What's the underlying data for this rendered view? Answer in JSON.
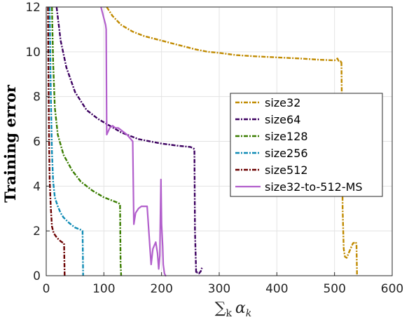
{
  "chart_data": {
    "type": "line",
    "title": "",
    "xlabel": "∑k αk",
    "xlabel_parts": {
      "sum": "∑",
      "sum_sub": "k",
      "alpha": "α",
      "alpha_sub": "k"
    },
    "ylabel": "Training error",
    "xlim": [
      0,
      600
    ],
    "ylim": [
      0,
      12
    ],
    "xticks": [
      0,
      100,
      200,
      300,
      400,
      500,
      600
    ],
    "yticks": [
      0,
      2,
      4,
      6,
      8,
      10,
      12
    ],
    "grid": true,
    "legend_position": "center-right",
    "series": [
      {
        "name": "size32",
        "color": "#c08a00",
        "dash": "dashdot",
        "x": [
          105,
          115,
          130,
          150,
          170,
          200,
          230,
          260,
          280,
          300,
          330,
          360,
          400,
          440,
          470,
          500,
          505,
          507,
          510,
          512,
          513,
          514,
          516,
          518,
          521,
          526,
          532,
          537,
          538,
          539
        ],
        "y": [
          12.0,
          11.6,
          11.2,
          10.9,
          10.7,
          10.5,
          10.3,
          10.1,
          10.0,
          9.95,
          9.85,
          9.8,
          9.75,
          9.7,
          9.65,
          9.62,
          9.7,
          9.6,
          9.55,
          9.6,
          7.0,
          3.0,
          1.2,
          0.85,
          0.8,
          1.1,
          1.45,
          1.5,
          1.4,
          0.0
        ]
      },
      {
        "name": "size64",
        "color": "#3c0060",
        "dash": "dashdot",
        "x": [
          18,
          25,
          35,
          50,
          70,
          90,
          110,
          130,
          160,
          200,
          230,
          250,
          255,
          257,
          258,
          260,
          262,
          265,
          268,
          270
        ],
        "y": [
          12.0,
          10.5,
          9.3,
          8.2,
          7.4,
          7.0,
          6.7,
          6.4,
          6.1,
          5.9,
          5.8,
          5.75,
          5.7,
          5.65,
          2.0,
          0.1,
          0.15,
          0.1,
          0.2,
          0.35
        ]
      },
      {
        "name": "size128",
        "color": "#3a7d00",
        "dash": "dashdot",
        "x": [
          10,
          12,
          15,
          20,
          30,
          45,
          60,
          80,
          100,
          115,
          125,
          128,
          129,
          130
        ],
        "y": [
          12.0,
          9.5,
          7.5,
          6.3,
          5.4,
          4.7,
          4.2,
          3.8,
          3.5,
          3.35,
          3.25,
          3.2,
          0.5,
          0.0
        ]
      },
      {
        "name": "size256",
        "color": "#0f8bb5",
        "dash": "dashdot",
        "x": [
          6,
          8,
          10,
          12,
          15,
          20,
          25,
          30,
          40,
          50,
          60,
          63,
          64
        ],
        "y": [
          12.0,
          8.0,
          5.5,
          4.2,
          3.5,
          3.1,
          2.8,
          2.6,
          2.35,
          2.15,
          2.05,
          2.0,
          0.0
        ]
      },
      {
        "name": "size512",
        "color": "#6b0000",
        "dash": "dashdot",
        "x": [
          3,
          4,
          5,
          6,
          8,
          10,
          13,
          17,
          22,
          27,
          31,
          32
        ],
        "y": [
          12.0,
          8.5,
          6.0,
          4.3,
          3.0,
          2.2,
          1.9,
          1.75,
          1.6,
          1.5,
          1.45,
          0.0
        ]
      },
      {
        "name": "size32-to-512-MS",
        "color": "#b25fcc",
        "dash": "solid",
        "x": [
          95,
          100,
          103,
          104,
          105,
          110,
          115,
          120,
          125,
          130,
          140,
          150,
          152,
          155,
          160,
          165,
          170,
          175,
          180,
          182,
          185,
          190,
          193,
          195,
          197,
          199,
          200,
          202,
          203,
          205,
          207,
          208
        ],
        "y": [
          12.0,
          11.5,
          11.2,
          11.0,
          6.3,
          6.6,
          6.7,
          6.6,
          6.6,
          6.5,
          6.3,
          6.0,
          2.3,
          2.8,
          3.0,
          3.1,
          3.1,
          3.1,
          1.2,
          0.5,
          1.2,
          1.5,
          1.0,
          0.3,
          0.9,
          4.3,
          2.3,
          1.3,
          0.5,
          0.1,
          0.0,
          0.0
        ]
      }
    ]
  }
}
